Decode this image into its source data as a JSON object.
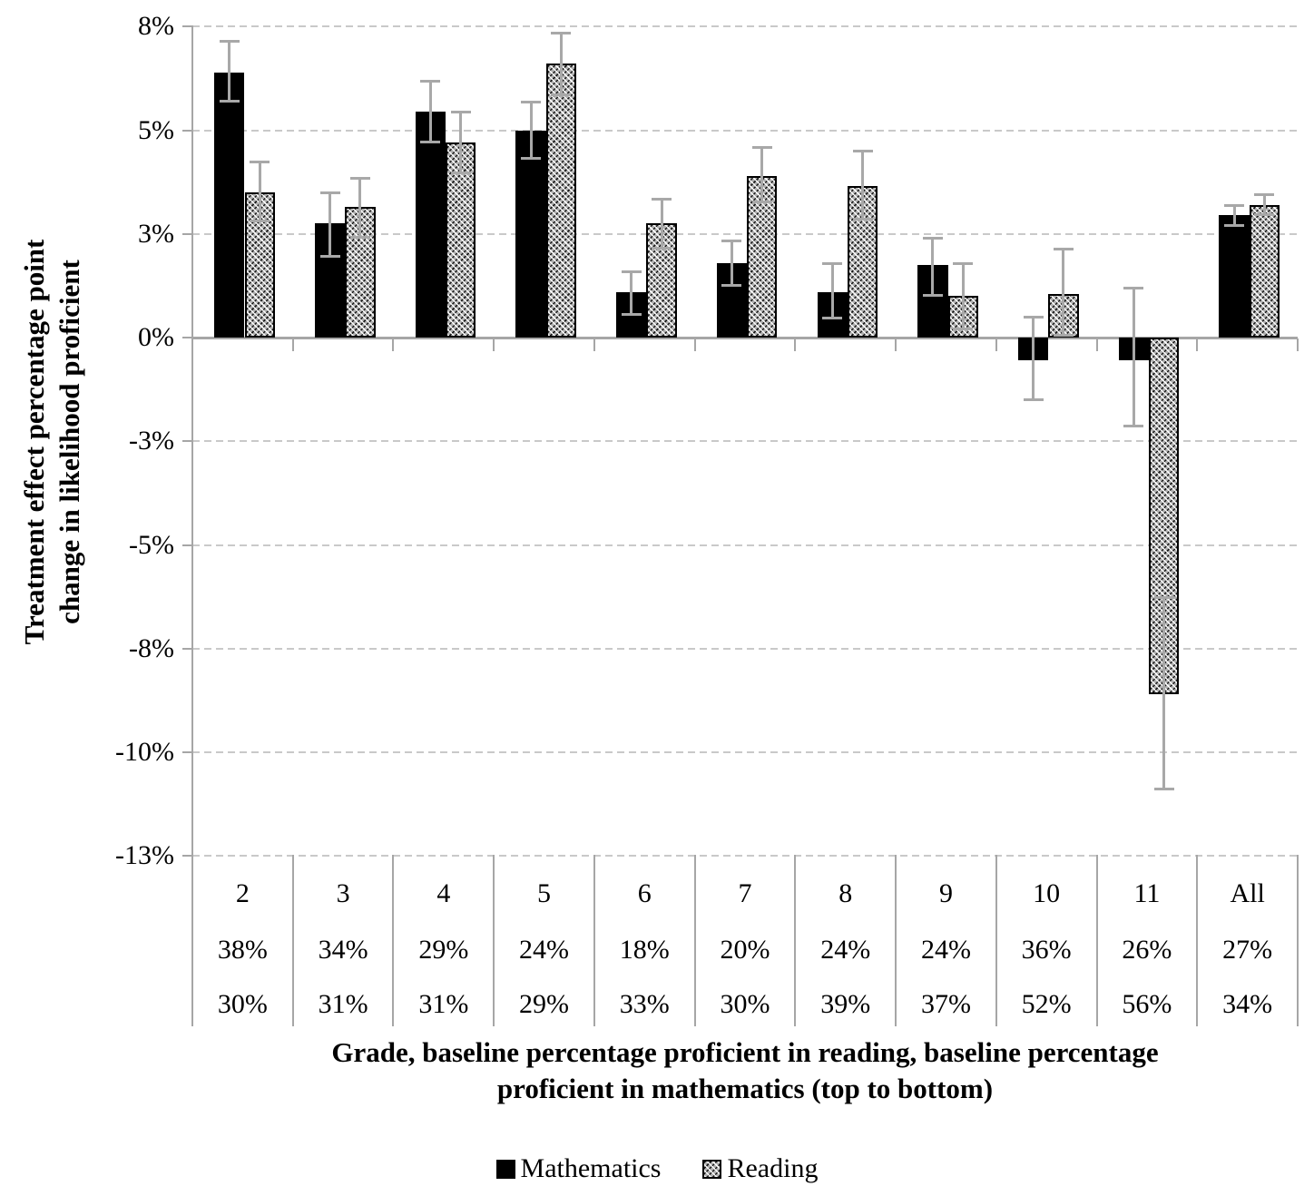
{
  "titles": {
    "y_axis_line1": "Treatment effect percentage point",
    "y_axis_line2": "change in likelihood proficient",
    "x_axis_line1": "Grade, baseline percentage proficient in reading, baseline percentage",
    "x_axis_line2": "proficient in mathematics (top to bottom)"
  },
  "colors": {
    "mathematics_bar": "#000000",
    "reading_bar_pattern": "gray diagonal crosshatch on white",
    "error_bar": "#a8a8a8",
    "gridline": "#c9c9c9",
    "axis": "#a6a6a6",
    "text": "#000000",
    "background": "#ffffff"
  },
  "chart_data": {
    "type": "bar",
    "title": "",
    "ylabel": "Treatment effect percentage point change in likelihood proficient",
    "xlabel": "Grade, baseline percentage proficient in reading, baseline percentage proficient in mathematics (top to bottom)",
    "unit": "percentage points",
    "ylim": [
      -13.5,
      7.5
    ],
    "grid": "horizontal dashed, every 2.5 percentage points",
    "legend_position": "bottom center",
    "error_bars": true,
    "y_ticks": [
      {
        "value": 7.5,
        "label": "8%"
      },
      {
        "value": 5,
        "label": "5%"
      },
      {
        "value": 2.5,
        "label": "3%"
      },
      {
        "value": 0,
        "label": "0%"
      },
      {
        "value": -2.5,
        "label": "-3%"
      },
      {
        "value": -5,
        "label": "-5%"
      },
      {
        "value": -7.5,
        "label": "-8%"
      },
      {
        "value": -10,
        "label": "-10%"
      },
      {
        "value": -12.5,
        "label": "-13%"
      }
    ],
    "categories": [
      "2",
      "3",
      "4",
      "5",
      "6",
      "7",
      "8",
      "9",
      "10",
      "11",
      "All"
    ],
    "category_rows": {
      "grade": [
        "2",
        "3",
        "4",
        "5",
        "6",
        "7",
        "8",
        "9",
        "10",
        "11",
        "All"
      ],
      "baseline_reading": [
        "38%",
        "34%",
        "29%",
        "24%",
        "18%",
        "20%",
        "24%",
        "24%",
        "36%",
        "26%",
        "27%"
      ],
      "baseline_math": [
        "30%",
        "31%",
        "31%",
        "29%",
        "33%",
        "30%",
        "39%",
        "37%",
        "52%",
        "56%",
        "34%"
      ]
    },
    "series": [
      {
        "name": "Mathematics",
        "style": "solid-black",
        "values": [
          6.4,
          2.75,
          5.45,
          5.0,
          1.1,
          1.8,
          1.1,
          1.75,
          -0.55,
          -0.55,
          2.95
        ],
        "ci_low": [
          5.7,
          1.95,
          4.7,
          4.3,
          0.55,
          1.25,
          0.45,
          1.0,
          -1.5,
          -2.15,
          2.7
        ],
        "ci_high": [
          7.15,
          3.5,
          6.2,
          5.7,
          1.6,
          2.35,
          1.8,
          2.4,
          0.5,
          1.2,
          3.2
        ]
      },
      {
        "name": "Reading",
        "style": "gray-hatched",
        "values": [
          3.5,
          3.15,
          4.7,
          6.6,
          2.75,
          3.9,
          3.65,
          1.0,
          1.05,
          -8.6,
          3.2
        ],
        "ci_low": [
          2.8,
          2.4,
          3.95,
          5.85,
          2.15,
          3.25,
          2.85,
          0.2,
          0.05,
          -10.9,
          2.95
        ],
        "ci_high": [
          4.25,
          3.85,
          5.45,
          7.35,
          3.35,
          4.6,
          4.5,
          1.8,
          2.15,
          -6.25,
          3.45
        ]
      }
    ]
  }
}
